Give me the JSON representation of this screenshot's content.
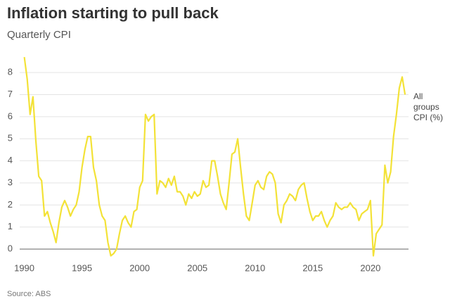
{
  "chart_data": {
    "type": "line",
    "title": "Inflation starting to pull back",
    "subtitle": "Quarterly CPI",
    "source": "Source: ABS",
    "x": [
      1990,
      1990.25,
      1990.5,
      1990.75,
      1991,
      1991.25,
      1991.5,
      1991.75,
      1992,
      1992.25,
      1992.5,
      1992.75,
      1993,
      1993.25,
      1993.5,
      1993.75,
      1994,
      1994.25,
      1994.5,
      1994.75,
      1995,
      1995.25,
      1995.5,
      1995.75,
      1996,
      1996.25,
      1996.5,
      1996.75,
      1997,
      1997.25,
      1997.5,
      1997.75,
      1998,
      1998.25,
      1998.5,
      1998.75,
      1999,
      1999.25,
      1999.5,
      1999.75,
      2000,
      2000.25,
      2000.5,
      2000.75,
      2001,
      2001.25,
      2001.5,
      2001.75,
      2002,
      2002.25,
      2002.5,
      2002.75,
      2003,
      2003.25,
      2003.5,
      2003.75,
      2004,
      2004.25,
      2004.5,
      2004.75,
      2005,
      2005.25,
      2005.5,
      2005.75,
      2006,
      2006.25,
      2006.5,
      2006.75,
      2007,
      2007.25,
      2007.5,
      2007.75,
      2008,
      2008.25,
      2008.5,
      2008.75,
      2009,
      2009.25,
      2009.5,
      2009.75,
      2010,
      2010.25,
      2010.5,
      2010.75,
      2011,
      2011.25,
      2011.5,
      2011.75,
      2012,
      2012.25,
      2012.5,
      2012.75,
      2013,
      2013.25,
      2013.5,
      2013.75,
      2014,
      2014.25,
      2014.5,
      2014.75,
      2015,
      2015.25,
      2015.5,
      2015.75,
      2016,
      2016.25,
      2016.5,
      2016.75,
      2017,
      2017.25,
      2017.5,
      2017.75,
      2018,
      2018.25,
      2018.5,
      2018.75,
      2019,
      2019.25,
      2019.5,
      2019.75,
      2020,
      2020.25,
      2020.5,
      2020.75,
      2021,
      2021.25,
      2021.5,
      2021.75,
      2022,
      2022.25,
      2022.5,
      2022.75,
      2023
    ],
    "series": [
      {
        "name": "All groups CPI (%)",
        "color": "#f3e237",
        "values": [
          8.7,
          7.7,
          6.1,
          6.9,
          4.9,
          3.3,
          3.1,
          1.5,
          1.7,
          1.2,
          0.8,
          0.3,
          1.2,
          1.9,
          2.2,
          1.9,
          1.5,
          1.8,
          2.0,
          2.6,
          3.7,
          4.5,
          5.1,
          5.1,
          3.7,
          3.1,
          2.0,
          1.5,
          1.3,
          0.3,
          -0.3,
          -0.2,
          0.0,
          0.7,
          1.3,
          1.5,
          1.2,
          1.0,
          1.7,
          1.8,
          2.8,
          3.1,
          6.1,
          5.8,
          6.0,
          6.1,
          2.5,
          3.1,
          3.0,
          2.8,
          3.2,
          2.9,
          3.3,
          2.6,
          2.6,
          2.4,
          2.0,
          2.5,
          2.3,
          2.6,
          2.4,
          2.5,
          3.1,
          2.8,
          2.9,
          4.0,
          4.0,
          3.3,
          2.5,
          2.1,
          1.8,
          3.0,
          4.3,
          4.4,
          5.0,
          3.7,
          2.5,
          1.5,
          1.3,
          2.1,
          2.9,
          3.1,
          2.8,
          2.7,
          3.3,
          3.5,
          3.4,
          3.0,
          1.6,
          1.2,
          2.0,
          2.2,
          2.5,
          2.4,
          2.2,
          2.7,
          2.9,
          3.0,
          2.3,
          1.7,
          1.3,
          1.5,
          1.5,
          1.7,
          1.3,
          1.0,
          1.3,
          1.5,
          2.1,
          1.9,
          1.8,
          1.9,
          1.9,
          2.1,
          1.9,
          1.8,
          1.3,
          1.6,
          1.7,
          1.8,
          2.2,
          -0.3,
          0.7,
          0.9,
          1.1,
          3.8,
          3.0,
          3.5,
          5.1,
          6.1,
          7.3,
          7.8,
          7.0
        ]
      }
    ],
    "xlim": [
      1989.6,
      2023.3
    ],
    "xticks": [
      1990,
      1995,
      2000,
      2005,
      2010,
      2015,
      2020
    ],
    "ylim": [
      -0.6,
      8.8
    ],
    "yticks": [
      0,
      1,
      2,
      3,
      4,
      5,
      6,
      7,
      8
    ],
    "grid": true
  }
}
